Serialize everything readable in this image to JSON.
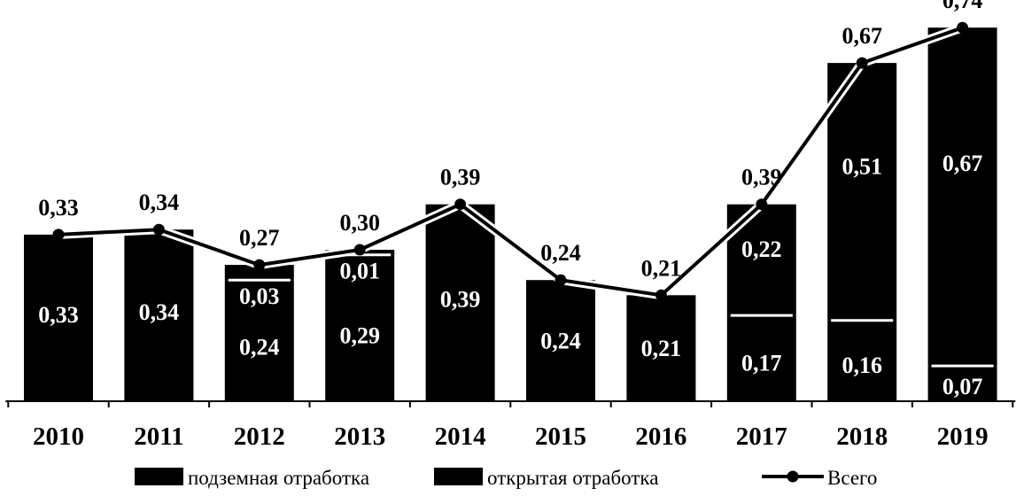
{
  "chart_data": {
    "type": "bar",
    "stacked": true,
    "categories": [
      "2010",
      "2011",
      "2012",
      "2013",
      "2014",
      "2015",
      "2016",
      "2017",
      "2018",
      "2019"
    ],
    "series": [
      {
        "name": "подземная отработка",
        "kind": "bar",
        "color": "#000000",
        "values": [
          0.33,
          0.34,
          0.24,
          0.29,
          0.39,
          0.24,
          0.21,
          0.17,
          0.16,
          0.07
        ],
        "labels": [
          "0,33",
          "0,34",
          "0,24",
          "0,29",
          "0,39",
          "0,24",
          "0,21",
          "0,17",
          "0,16",
          "0,07"
        ]
      },
      {
        "name": "открытая отработка",
        "kind": "bar",
        "color": "#000000",
        "values": [
          0,
          0,
          0.03,
          0.01,
          0,
          0,
          0,
          0.22,
          0.51,
          0.67
        ],
        "labels": [
          "",
          "",
          "0,03",
          "0,01",
          "",
          "",
          "",
          "0,22",
          "0,51",
          "0,67"
        ]
      },
      {
        "name": "Всего",
        "kind": "line",
        "color": "#000000",
        "values": [
          0.33,
          0.34,
          0.27,
          0.3,
          0.39,
          0.24,
          0.21,
          0.39,
          0.67,
          0.74
        ],
        "labels": [
          "0,33",
          "0,34",
          "0,27",
          "0,30",
          "0,39",
          "0,24",
          "0,21",
          "0,39",
          "0,67",
          "0,74"
        ]
      }
    ],
    "title": "",
    "xlabel": "",
    "ylabel": "",
    "ylim": [
      0,
      0.8
    ],
    "grid": false,
    "legend": "bottom"
  }
}
